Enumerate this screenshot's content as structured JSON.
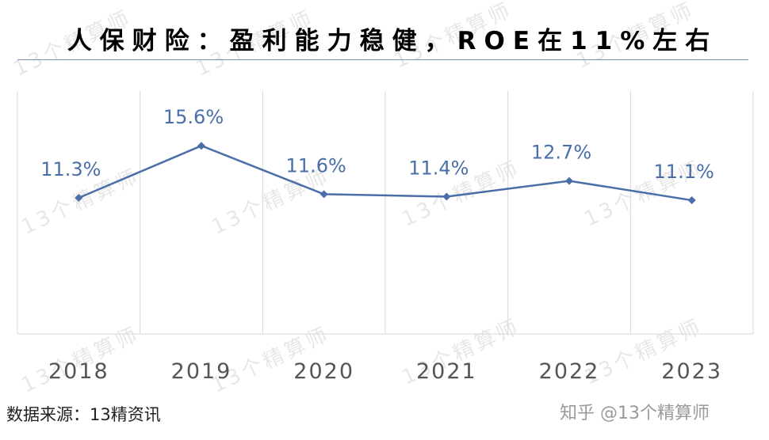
{
  "title": "人保财险：盈利能力稳健，ROE在11%左右",
  "source": "数据来源：13精资讯",
  "attribution": "知乎 @13个精算师",
  "watermark": "13个精算师",
  "colors": {
    "line": "#4a6fa8",
    "label": "#4a6fa8",
    "grid": "#d9d9d9",
    "tick": "#555555"
  },
  "chart_data": {
    "type": "line",
    "categories": [
      "2018",
      "2019",
      "2020",
      "2021",
      "2022",
      "2023"
    ],
    "values": [
      11.3,
      15.6,
      11.6,
      11.4,
      12.7,
      11.1
    ],
    "data_labels": [
      "11.3%",
      "15.6%",
      "11.6%",
      "11.4%",
      "12.7%",
      "11.1%"
    ],
    "ylabel": "",
    "xlabel": "",
    "grid": "vertical",
    "legend": "none"
  }
}
